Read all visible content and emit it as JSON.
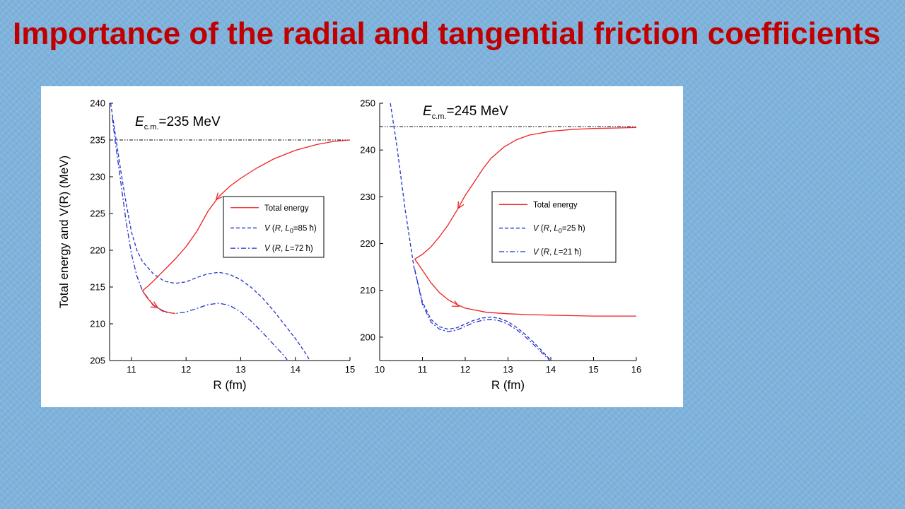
{
  "slide": {
    "title": "Importance of the radial and tangential friction coefficients"
  },
  "colors": {
    "title": "#c00000",
    "total_energy": "#ee2222",
    "potential": "#2233cc",
    "background": "#7fb3dc"
  },
  "chart_data": [
    {
      "type": "line",
      "energy_label": {
        "symbol": "E",
        "subscript": "c.m.",
        "value": "=235 MeV"
      },
      "ylabel": "Total  energy and V(R) (MeV)",
      "xlabel": "R (fm)",
      "xlim": [
        10.6,
        15
      ],
      "ylim": [
        205,
        240
      ],
      "xticks": [
        11,
        12,
        13,
        14,
        15
      ],
      "yticks": [
        205,
        210,
        215,
        220,
        225,
        230,
        235,
        240
      ],
      "legend": {
        "placement": "center-right",
        "entries": [
          {
            "label": "Total energy",
            "style": "solid"
          },
          {
            "label": "V (R, L0=85 ħ)",
            "style": "dash"
          },
          {
            "label": "V (R, L=72 ħ)",
            "style": "dashdot"
          }
        ]
      },
      "series": [
        {
          "label": "Ec.m. level",
          "style": "dashdotdot",
          "points": [
            [
              10.6,
              235
            ],
            [
              15,
              235
            ]
          ]
        },
        {
          "label": "V (R, L0=85 ħ)",
          "style": "dash",
          "points": [
            [
              10.62,
              240
            ],
            [
              10.7,
              236
            ],
            [
              10.8,
              231
            ],
            [
              10.9,
              226.5
            ],
            [
              11.0,
              222.5
            ],
            [
              11.1,
              220
            ],
            [
              11.2,
              218.5
            ],
            [
              11.4,
              216.8
            ],
            [
              11.6,
              215.8
            ],
            [
              11.8,
              215.5
            ],
            [
              12.0,
              215.7
            ],
            [
              12.2,
              216.3
            ],
            [
              12.4,
              216.8
            ],
            [
              12.6,
              217.0
            ],
            [
              12.8,
              216.7
            ],
            [
              13.0,
              216.0
            ],
            [
              13.2,
              214.9
            ],
            [
              13.4,
              213.5
            ],
            [
              13.6,
              211.8
            ],
            [
              13.8,
              209.9
            ],
            [
              14.0,
              208.0
            ],
            [
              14.15,
              206.4
            ],
            [
              14.25,
              205.2
            ]
          ]
        },
        {
          "label": "V (R, L=72 ħ)",
          "style": "dashdot",
          "points": [
            [
              10.65,
              238
            ],
            [
              10.7,
              235
            ],
            [
              10.8,
              229.5
            ],
            [
              10.9,
              224
            ],
            [
              11.0,
              219.5
            ],
            [
              11.1,
              216.5
            ],
            [
              11.2,
              214.5
            ],
            [
              11.4,
              212.5
            ],
            [
              11.6,
              211.6
            ],
            [
              11.8,
              211.4
            ],
            [
              12.0,
              211.6
            ],
            [
              12.2,
              212.1
            ],
            [
              12.4,
              212.6
            ],
            [
              12.6,
              212.8
            ],
            [
              12.8,
              212.5
            ],
            [
              13.0,
              211.6
            ],
            [
              13.2,
              210.3
            ],
            [
              13.4,
              208.8
            ],
            [
              13.6,
              207.2
            ],
            [
              13.8,
              205.6
            ],
            [
              13.85,
              205.1
            ]
          ]
        },
        {
          "label": "Total energy (incoming)",
          "style": "solid",
          "points": [
            [
              15,
              235
            ],
            [
              14.7,
              234.8
            ],
            [
              14.4,
              234.4
            ],
            [
              14.0,
              233.6
            ],
            [
              13.6,
              232.4
            ],
            [
              13.3,
              231.2
            ],
            [
              13.0,
              229.8
            ],
            [
              12.8,
              228.7
            ],
            [
              12.6,
              227.3
            ],
            [
              12.4,
              225.3
            ],
            [
              12.2,
              222.6
            ],
            [
              12.0,
              220.5
            ],
            [
              11.8,
              218.8
            ],
            [
              11.6,
              217.3
            ],
            [
              11.4,
              215.8
            ],
            [
              11.3,
              215.1
            ],
            [
              11.2,
              214.5
            ]
          ],
          "arrow_at": [
            12.55,
            226.9
          ]
        },
        {
          "label": "Total energy (outgoing)",
          "style": "solid",
          "points": [
            [
              11.2,
              214.5
            ],
            [
              11.3,
              213.4
            ],
            [
              11.4,
              212.6
            ],
            [
              11.5,
              212.1
            ],
            [
              11.6,
              211.7
            ],
            [
              11.7,
              211.5
            ],
            [
              11.8,
              211.4
            ]
          ],
          "arrow_at": [
            11.48,
            212.2
          ]
        }
      ]
    },
    {
      "type": "line",
      "energy_label": {
        "symbol": "E",
        "subscript": "c.m.",
        "value": "=245 MeV"
      },
      "ylabel": "",
      "xlabel": "R (fm)",
      "xlim": [
        10,
        16
      ],
      "ylim": [
        195,
        250
      ],
      "xticks": [
        10,
        11,
        12,
        13,
        14,
        15,
        16
      ],
      "yticks": [
        200,
        210,
        220,
        230,
        240,
        250
      ],
      "legend": {
        "placement": "center-right",
        "entries": [
          {
            "label": "Total energy",
            "style": "solid"
          },
          {
            "label": "V (R, L0=25 ħ)",
            "style": "dash"
          },
          {
            "label": "V (R, L=21 ħ)",
            "style": "dashdot"
          }
        ]
      },
      "series": [
        {
          "label": "Ec.m. level",
          "style": "dashdotdot",
          "points": [
            [
              10,
              245
            ],
            [
              16,
              245
            ]
          ]
        },
        {
          "label": "V (R, L0=25 ħ)",
          "style": "dash",
          "points": [
            [
              10.25,
              250
            ],
            [
              10.4,
              241
            ],
            [
              10.6,
              227
            ],
            [
              10.8,
              215
            ],
            [
              11.0,
              207.5
            ],
            [
              11.2,
              203.8
            ],
            [
              11.4,
              202.2
            ],
            [
              11.6,
              201.7
            ],
            [
              11.8,
              202.0
            ],
            [
              12.0,
              202.8
            ],
            [
              12.2,
              203.6
            ],
            [
              12.4,
              204.1
            ],
            [
              12.6,
              204.3
            ],
            [
              12.8,
              204.0
            ],
            [
              13.0,
              203.3
            ],
            [
              13.2,
              202.1
            ],
            [
              13.4,
              200.6
            ],
            [
              13.6,
              198.9
            ],
            [
              13.8,
              197.0
            ],
            [
              14.0,
              195.0
            ]
          ]
        },
        {
          "label": "V (R, L=21 ħ)",
          "style": "dashdot",
          "points": [
            [
              10.82,
              214.5
            ],
            [
              11.0,
              207.0
            ],
            [
              11.2,
              203.2
            ],
            [
              11.4,
              201.7
            ],
            [
              11.6,
              201.2
            ],
            [
              11.8,
              201.5
            ],
            [
              12.0,
              202.3
            ],
            [
              12.2,
              203.1
            ],
            [
              12.4,
              203.6
            ],
            [
              12.6,
              203.8
            ],
            [
              12.8,
              203.5
            ],
            [
              13.0,
              202.8
            ],
            [
              13.2,
              201.6
            ],
            [
              13.4,
              200.1
            ],
            [
              13.6,
              198.4
            ],
            [
              13.8,
              196.6
            ],
            [
              13.98,
              195.0
            ]
          ]
        },
        {
          "label": "Total energy (incoming)",
          "style": "solid",
          "points": [
            [
              16,
              244.8
            ],
            [
              15.5,
              244.7
            ],
            [
              15,
              244.6
            ],
            [
              14.5,
              244.4
            ],
            [
              14.0,
              244.0
            ],
            [
              13.5,
              243.2
            ],
            [
              13.2,
              242.2
            ],
            [
              12.9,
              240.6
            ],
            [
              12.6,
              238.2
            ],
            [
              12.4,
              235.8
            ],
            [
              12.2,
              233.0
            ],
            [
              12.0,
              230.3
            ],
            [
              11.8,
              227.0
            ],
            [
              11.6,
              224.0
            ],
            [
              11.4,
              221.5
            ],
            [
              11.2,
              219.3
            ],
            [
              11.0,
              217.7
            ],
            [
              10.82,
              216.7
            ]
          ],
          "arrow_at": [
            11.83,
            227.5
          ]
        },
        {
          "label": "Total energy (outgoing)",
          "style": "solid",
          "points": [
            [
              10.82,
              216.7
            ],
            [
              11.0,
              214.3
            ],
            [
              11.2,
              211.6
            ],
            [
              11.4,
              209.5
            ],
            [
              11.6,
              208.0
            ],
            [
              11.8,
              207.0
            ],
            [
              12.0,
              206.2
            ],
            [
              12.5,
              205.3
            ],
            [
              13.0,
              205.0
            ],
            [
              13.5,
              204.8
            ],
            [
              14.0,
              204.7
            ],
            [
              14.5,
              204.6
            ],
            [
              15.0,
              204.5
            ],
            [
              16,
              204.5
            ]
          ],
          "arrow_at": [
            11.85,
            206.6
          ]
        }
      ]
    }
  ]
}
